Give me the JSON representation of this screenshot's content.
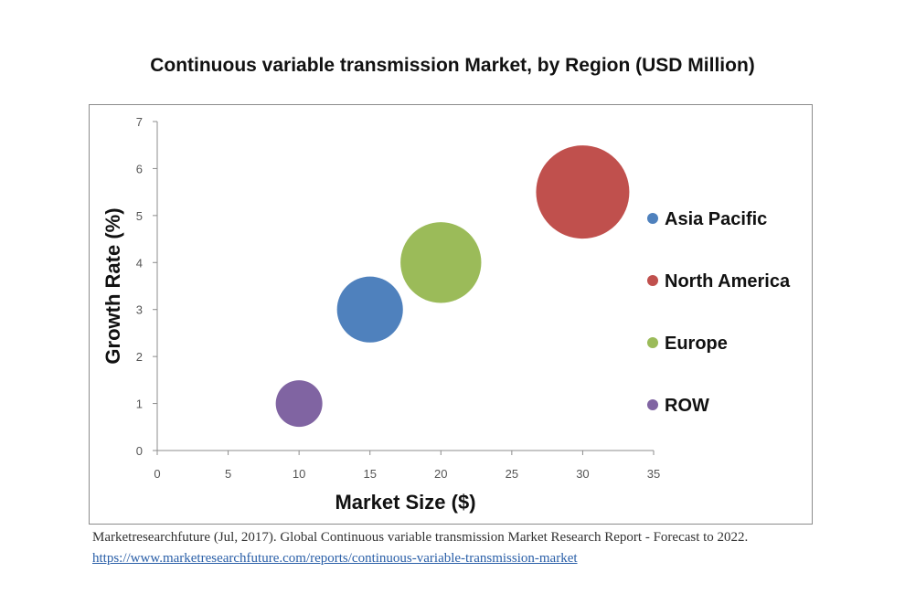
{
  "chart_data": {
    "type": "bubble",
    "title": "Continuous variable transmission Market, by Region (USD Million)",
    "xlabel": "Market Size ($)",
    "ylabel": "Growth Rate (%)",
    "xlim": [
      0,
      35
    ],
    "ylim": [
      0,
      7
    ],
    "xticks": [
      0,
      5,
      10,
      15,
      20,
      25,
      30,
      35
    ],
    "yticks": [
      0,
      1,
      2,
      3,
      4,
      5,
      6,
      7
    ],
    "grid": false,
    "legend_position": "right",
    "series": [
      {
        "name": "Asia Pacific",
        "x": 15,
        "y": 3,
        "size": 4,
        "color": "#4f81bd"
      },
      {
        "name": "North America",
        "x": 30,
        "y": 5.5,
        "size": 8,
        "color": "#c0504d"
      },
      {
        "name": "Europe",
        "x": 20,
        "y": 4,
        "size": 6,
        "color": "#9bbb59"
      },
      {
        "name": "ROW",
        "x": 10,
        "y": 1,
        "size": 2,
        "color": "#8064a2"
      }
    ]
  },
  "source": {
    "citation": "Marketresearchfuture (Jul, 2017). Global Continuous variable transmission Market Research Report - Forecast to 2022.",
    "url": "https://www.marketresearchfuture.com/reports/continuous-variable-transmission-market"
  }
}
